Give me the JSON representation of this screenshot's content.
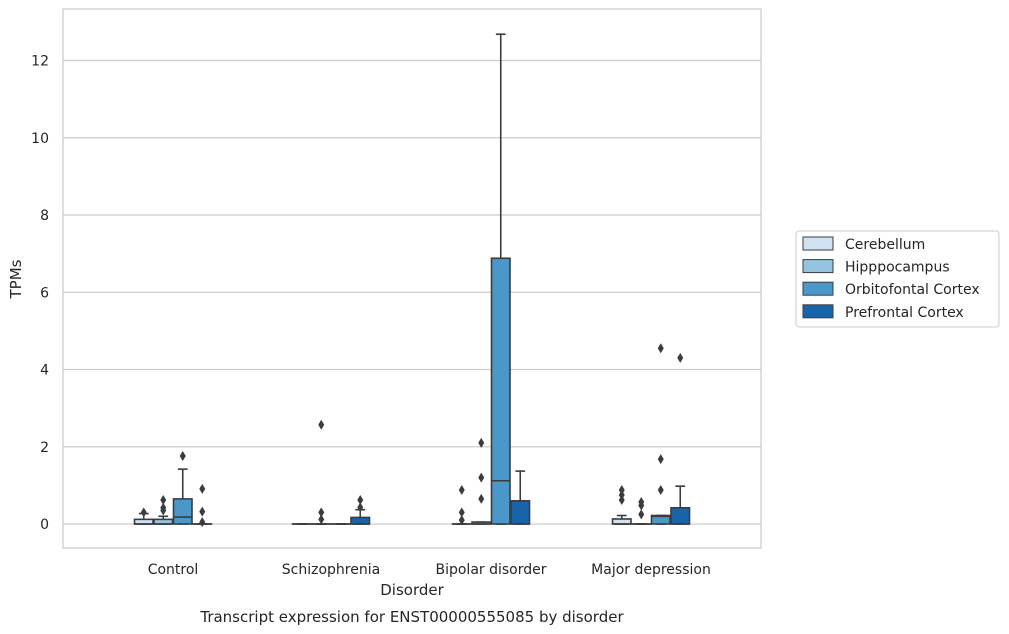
{
  "chart_data": {
    "type": "boxplot",
    "title": "",
    "caption": "Transcript expression for ENST00000555085 by disorder",
    "xlabel": "Disorder",
    "ylabel": "TPMs",
    "ylim": [
      -0.6,
      13.3
    ],
    "yticks": [
      0,
      2,
      4,
      6,
      8,
      10,
      12
    ],
    "grid": "horizontal",
    "legend_placement": "right",
    "categories": [
      "Control",
      "Schizophrenia",
      "Bipolar disorder",
      "Major depression"
    ],
    "series": [
      {
        "name": "Cerebellum",
        "color": "#d0e1f2",
        "boxes": [
          {
            "q1": 0,
            "median": 0,
            "q3": 0.12,
            "whislo": 0,
            "whishi": 0.27,
            "fliers": [
              0.3
            ]
          },
          {
            "q1": 0,
            "median": 0,
            "q3": 0,
            "whislo": 0,
            "whishi": 0,
            "fliers": []
          },
          {
            "q1": 0,
            "median": 0,
            "q3": 0,
            "whislo": 0,
            "whishi": 0,
            "fliers": [
              0.1,
              0.3,
              0.88
            ]
          },
          {
            "q1": 0,
            "median": 0,
            "q3": 0.13,
            "whislo": 0,
            "whishi": 0.22,
            "fliers": [
              0.62,
              0.75,
              0.88
            ]
          }
        ]
      },
      {
        "name": "Hipppocampus",
        "color": "#94c4df",
        "boxes": [
          {
            "q1": 0,
            "median": 0,
            "q3": 0.12,
            "whislo": 0,
            "whishi": 0.2,
            "fliers": [
              0.35,
              0.42,
              0.62
            ]
          },
          {
            "q1": 0,
            "median": 0,
            "q3": 0,
            "whislo": 0,
            "whishi": 0,
            "fliers": [
              0.12,
              0.3,
              2.57
            ]
          },
          {
            "q1": 0,
            "median": 0,
            "q3": 0.05,
            "whislo": 0,
            "whishi": 0.05,
            "fliers": [
              0.65,
              1.2,
              2.1
            ]
          },
          {
            "q1": 0,
            "median": 0,
            "q3": 0,
            "whislo": 0,
            "whishi": 0,
            "fliers": [
              0.25,
              0.48,
              0.57
            ]
          }
        ]
      },
      {
        "name": "Orbitofontal Cortex",
        "color": "#4a98c9",
        "boxes": [
          {
            "q1": 0,
            "median": 0.18,
            "q3": 0.65,
            "whislo": 0,
            "whishi": 1.42,
            "fliers": [
              1.76
            ]
          },
          {
            "q1": 0,
            "median": 0,
            "q3": 0,
            "whislo": 0,
            "whishi": 0,
            "fliers": []
          },
          {
            "q1": 0,
            "median": 1.12,
            "q3": 6.88,
            "whislo": 0,
            "whishi": 12.68,
            "fliers": []
          },
          {
            "q1": 0,
            "median": 0.2,
            "q3": 0.22,
            "whislo": 0,
            "whishi": 0.22,
            "fliers": [
              0.88,
              1.68,
              4.55
            ]
          }
        ]
      },
      {
        "name": "Prefrontal Cortex",
        "color": "#1764ab",
        "boxes": [
          {
            "q1": 0,
            "median": 0,
            "q3": 0,
            "whislo": 0,
            "whishi": 0,
            "fliers": [
              0.05,
              0.32,
              0.91
            ]
          },
          {
            "q1": 0,
            "median": 0,
            "q3": 0.17,
            "whislo": 0,
            "whishi": 0.37,
            "fliers": [
              0.43,
              0.62
            ]
          },
          {
            "q1": 0,
            "median": 0,
            "q3": 0.6,
            "whislo": 0,
            "whishi": 1.37,
            "fliers": []
          },
          {
            "q1": 0,
            "median": 0,
            "q3": 0.42,
            "whislo": 0,
            "whishi": 0.98,
            "fliers": [
              4.3
            ]
          }
        ]
      }
    ]
  }
}
